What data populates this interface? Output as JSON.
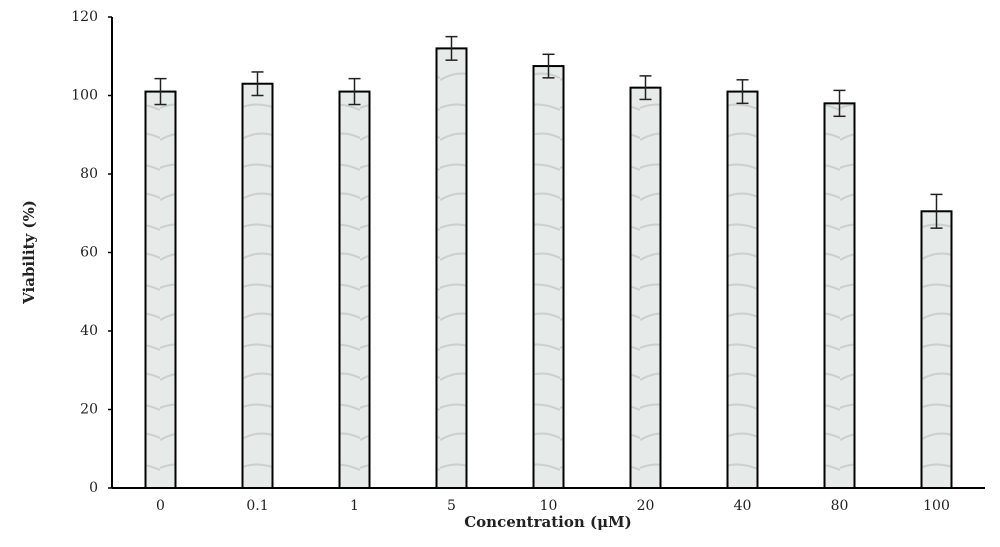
{
  "chart_data": {
    "type": "bar",
    "x_label": "Concentration (μM)",
    "y_label": "Viability (%)",
    "categories": [
      "0",
      "0.1",
      "1",
      "5",
      "10",
      "20",
      "40",
      "80",
      "100"
    ],
    "values": [
      101,
      103,
      101,
      112,
      107.5,
      102,
      101,
      98,
      70.5
    ],
    "errors": [
      3.3,
      3,
      3.3,
      3,
      3,
      3,
      3,
      3.3,
      4.3
    ],
    "color": "#e6eae8",
    "ylim": [
      0,
      120
    ],
    "yticks": [
      0,
      20,
      40,
      60,
      80,
      100,
      120
    ],
    "grid": false
  }
}
